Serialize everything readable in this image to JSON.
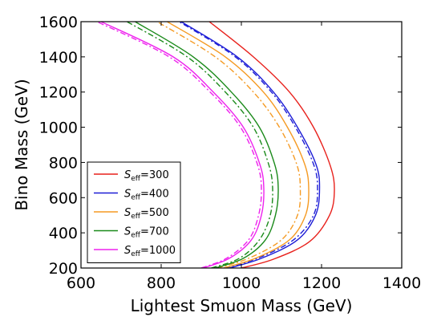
{
  "chart_data": {
    "type": "line",
    "xlabel": "Lightest Smuon Mass (GeV)",
    "ylabel": "Bino Mass (GeV)",
    "xlim": [
      600,
      1400
    ],
    "ylim": [
      200,
      1600
    ],
    "xticks": [
      "600",
      "800",
      "1000",
      "1200",
      "1400"
    ],
    "yticks": [
      "200",
      "400",
      "600",
      "800",
      "1000",
      "1200",
      "1400",
      "1600"
    ],
    "legend_position": "lower-left",
    "series": [
      {
        "name_sym": "S",
        "name_sub": "eff",
        "name_val": "=300",
        "color": "#e8211c",
        "solid": [
          [
            1000,
            200
          ],
          [
            1080,
            250
          ],
          [
            1170,
            350
          ],
          [
            1220,
            500
          ],
          [
            1232,
            640
          ],
          [
            1222,
            780
          ],
          [
            1180,
            1000
          ],
          [
            1120,
            1200
          ],
          [
            1030,
            1400
          ],
          [
            920,
            1600
          ]
        ],
        "dashdot": []
      },
      {
        "name_sym": "S",
        "name_sub": "eff",
        "name_val": "=400",
        "color": "#1c1cd6",
        "solid": [
          [
            970,
            200
          ],
          [
            1050,
            255
          ],
          [
            1140,
            360
          ],
          [
            1185,
            500
          ],
          [
            1195,
            650
          ],
          [
            1186,
            790
          ],
          [
            1140,
            1000
          ],
          [
            1080,
            1200
          ],
          [
            990,
            1400
          ],
          [
            850,
            1600
          ]
        ],
        "dashdot": [
          [
            958,
            200
          ],
          [
            1040,
            255
          ],
          [
            1130,
            360
          ],
          [
            1180,
            500
          ],
          [
            1190,
            650
          ],
          [
            1180,
            790
          ],
          [
            1135,
            1000
          ],
          [
            1075,
            1200
          ],
          [
            985,
            1400
          ],
          [
            845,
            1600
          ]
        ]
      },
      {
        "name_sym": "S",
        "name_sub": "eff",
        "name_val": "=500",
        "color": "#f59a22",
        "solid": [
          [
            955,
            200
          ],
          [
            1035,
            255
          ],
          [
            1120,
            360
          ],
          [
            1160,
            500
          ],
          [
            1168,
            650
          ],
          [
            1158,
            790
          ],
          [
            1115,
            1000
          ],
          [
            1055,
            1200
          ],
          [
            960,
            1400
          ],
          [
            815,
            1600
          ]
        ],
        "dashdot": [
          [
            940,
            200
          ],
          [
            1018,
            255
          ],
          [
            1100,
            360
          ],
          [
            1140,
            500
          ],
          [
            1147,
            650
          ],
          [
            1138,
            790
          ],
          [
            1095,
            1000
          ],
          [
            1030,
            1200
          ],
          [
            935,
            1400
          ],
          [
            790,
            1600
          ]
        ]
      },
      {
        "name_sym": "S",
        "name_sub": "eff",
        "name_val": "=700",
        "color": "#1a8a1a",
        "solid": [
          [
            935,
            200
          ],
          [
            1005,
            255
          ],
          [
            1060,
            360
          ],
          [
            1085,
            500
          ],
          [
            1092,
            650
          ],
          [
            1083,
            790
          ],
          [
            1045,
            1000
          ],
          [
            975,
            1200
          ],
          [
            880,
            1400
          ],
          [
            735,
            1600
          ]
        ],
        "dashdot": [
          [
            925,
            200
          ],
          [
            995,
            255
          ],
          [
            1045,
            360
          ],
          [
            1072,
            500
          ],
          [
            1078,
            650
          ],
          [
            1068,
            790
          ],
          [
            1030,
            1000
          ],
          [
            960,
            1200
          ],
          [
            865,
            1400
          ],
          [
            715,
            1600
          ]
        ]
      },
      {
        "name_sym": "S",
        "name_sub": "eff",
        "name_val": "=1000",
        "color": "#ee22ee",
        "solid": [
          [
            905,
            200
          ],
          [
            970,
            255
          ],
          [
            1025,
            360
          ],
          [
            1050,
            500
          ],
          [
            1056,
            650
          ],
          [
            1046,
            790
          ],
          [
            1005,
            1000
          ],
          [
            930,
            1200
          ],
          [
            830,
            1400
          ],
          [
            650,
            1600
          ]
        ],
        "dashdot": [
          [
            900,
            200
          ],
          [
            963,
            255
          ],
          [
            1018,
            360
          ],
          [
            1043,
            500
          ],
          [
            1050,
            650
          ],
          [
            1040,
            790
          ],
          [
            998,
            1000
          ],
          [
            922,
            1200
          ],
          [
            820,
            1400
          ],
          [
            640,
            1600
          ]
        ]
      }
    ]
  }
}
